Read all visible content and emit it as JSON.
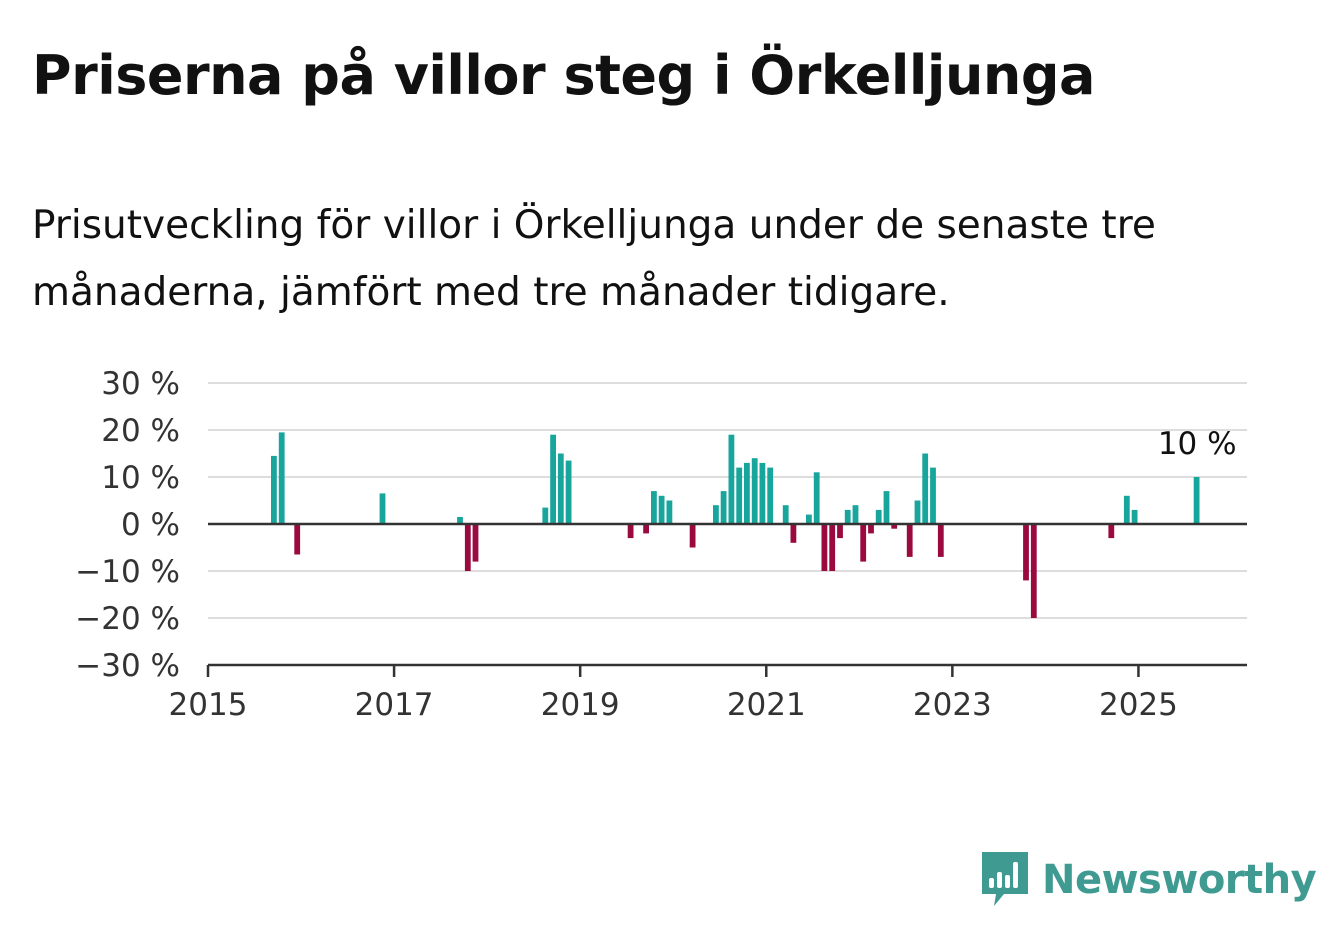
{
  "title": "Priserna på villor steg i Örkelljunga",
  "subtitle": "Prisutveckling för villor i Örkelljunga under de senaste tre månaderna, jämfört med tre månader tidigare.",
  "brand": {
    "name": "Newsworthy",
    "color": "#3f9a92"
  },
  "colors": {
    "positive": "#18a59c",
    "negative": "#9b0a3e",
    "grid": "#dddddd",
    "axis": "#333333"
  },
  "chart_data": {
    "type": "bar",
    "x_ticks": [
      "2015",
      "2017",
      "2019",
      "2021",
      "2023",
      "2025"
    ],
    "y_ticks": [
      "30 %",
      "20 %",
      "10 %",
      "0 %",
      "−10 %",
      "−20 %",
      "−30 %"
    ],
    "ylim": [
      -30,
      30
    ],
    "xlim": [
      "2015-01",
      "2026-03"
    ],
    "grid": true,
    "annotation": {
      "text": "10 %",
      "date": "2025-08"
    },
    "series": [
      {
        "points": [
          {
            "date": "2015-09",
            "value": 14.5
          },
          {
            "date": "2015-10",
            "value": 19.5
          },
          {
            "date": "2015-12",
            "value": -6.5
          },
          {
            "date": "2016-11",
            "value": 6.5
          },
          {
            "date": "2017-09",
            "value": 1.5
          },
          {
            "date": "2017-10",
            "value": -10
          },
          {
            "date": "2017-11",
            "value": -8
          },
          {
            "date": "2018-08",
            "value": 3.5
          },
          {
            "date": "2018-09",
            "value": 19
          },
          {
            "date": "2018-10",
            "value": 15
          },
          {
            "date": "2018-11",
            "value": 13.5
          },
          {
            "date": "2019-07",
            "value": -3
          },
          {
            "date": "2019-09",
            "value": -2
          },
          {
            "date": "2019-10",
            "value": 7
          },
          {
            "date": "2019-11",
            "value": 6
          },
          {
            "date": "2019-12",
            "value": 5
          },
          {
            "date": "2020-03",
            "value": -5
          },
          {
            "date": "2020-06",
            "value": 4
          },
          {
            "date": "2020-07",
            "value": 7
          },
          {
            "date": "2020-08",
            "value": 19
          },
          {
            "date": "2020-09",
            "value": 12
          },
          {
            "date": "2020-10",
            "value": 13
          },
          {
            "date": "2020-11",
            "value": 14
          },
          {
            "date": "2020-12",
            "value": 13
          },
          {
            "date": "2021-01",
            "value": 12
          },
          {
            "date": "2021-03",
            "value": 4
          },
          {
            "date": "2021-04",
            "value": -4
          },
          {
            "date": "2021-06",
            "value": 2
          },
          {
            "date": "2021-07",
            "value": 11
          },
          {
            "date": "2021-08",
            "value": -10
          },
          {
            "date": "2021-09",
            "value": -10
          },
          {
            "date": "2021-10",
            "value": -3
          },
          {
            "date": "2021-11",
            "value": 3
          },
          {
            "date": "2021-12",
            "value": 4
          },
          {
            "date": "2022-01",
            "value": -8
          },
          {
            "date": "2022-02",
            "value": -2
          },
          {
            "date": "2022-03",
            "value": 3
          },
          {
            "date": "2022-04",
            "value": 7
          },
          {
            "date": "2022-05",
            "value": -1
          },
          {
            "date": "2022-07",
            "value": -7
          },
          {
            "date": "2022-08",
            "value": 5
          },
          {
            "date": "2022-09",
            "value": 15
          },
          {
            "date": "2022-10",
            "value": 12
          },
          {
            "date": "2022-11",
            "value": -7
          },
          {
            "date": "2023-10",
            "value": -12
          },
          {
            "date": "2023-11",
            "value": -20
          },
          {
            "date": "2024-09",
            "value": -3
          },
          {
            "date": "2024-11",
            "value": 6
          },
          {
            "date": "2024-12",
            "value": 3
          },
          {
            "date": "2025-08",
            "value": 10
          }
        ]
      }
    ]
  }
}
